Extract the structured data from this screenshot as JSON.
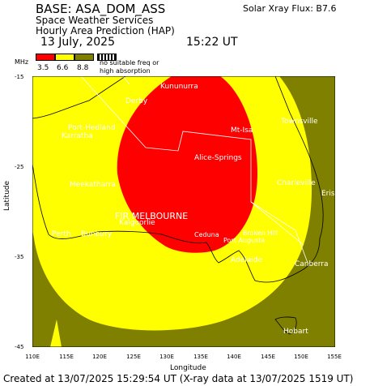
{
  "header": {
    "base": "BASE: ASA_DOM_ASS",
    "flux": "Solar Xray Flux: B7.6",
    "service": "Space Weather Services",
    "product": "Hourly Area Prediction (HAP)",
    "date": "13 July, 2025",
    "time": "15:22 UT"
  },
  "legend": {
    "unit": "MHz",
    "colors": [
      "#ff0000",
      "#ffff00",
      "#808000",
      "#000000"
    ],
    "values": [
      "3.5",
      "6.6",
      "8.8"
    ],
    "note_line1": "no suitable freq or",
    "note_line2": "high absorption"
  },
  "axes": {
    "x_label": "Longitude",
    "y_label": "Latitude",
    "x_ticks": [
      "110E",
      "115E",
      "120E",
      "125E",
      "130E",
      "135E",
      "140E",
      "145E",
      "150E",
      "155E"
    ],
    "y_ticks": [
      "-15",
      "-25",
      "-35",
      "-45"
    ]
  },
  "cities": [
    {
      "name": "Kununurra"
    },
    {
      "name": "Derby"
    },
    {
      "name": "Port-Hedland"
    },
    {
      "name": "Karratha"
    },
    {
      "name": "Mt-Isa"
    },
    {
      "name": "Townsville"
    },
    {
      "name": "Alice-Springs"
    },
    {
      "name": "Meekatharra"
    },
    {
      "name": "Charleville"
    },
    {
      "name": "Eris"
    },
    {
      "name": "FIR MELBOURNE"
    },
    {
      "name": "Kalgoorlie"
    },
    {
      "name": "Perth"
    },
    {
      "name": "Bunbury"
    },
    {
      "name": "Ceduna"
    },
    {
      "name": "Broken Hill"
    },
    {
      "name": "Port Augusta"
    },
    {
      "name": "Adelaide"
    },
    {
      "name": "Canberra"
    },
    {
      "name": "Hobart"
    }
  ],
  "footer": "Created at 13/07/2025 15:29:54 UT (X-ray data at 13/07/2025 1519 UT)"
}
